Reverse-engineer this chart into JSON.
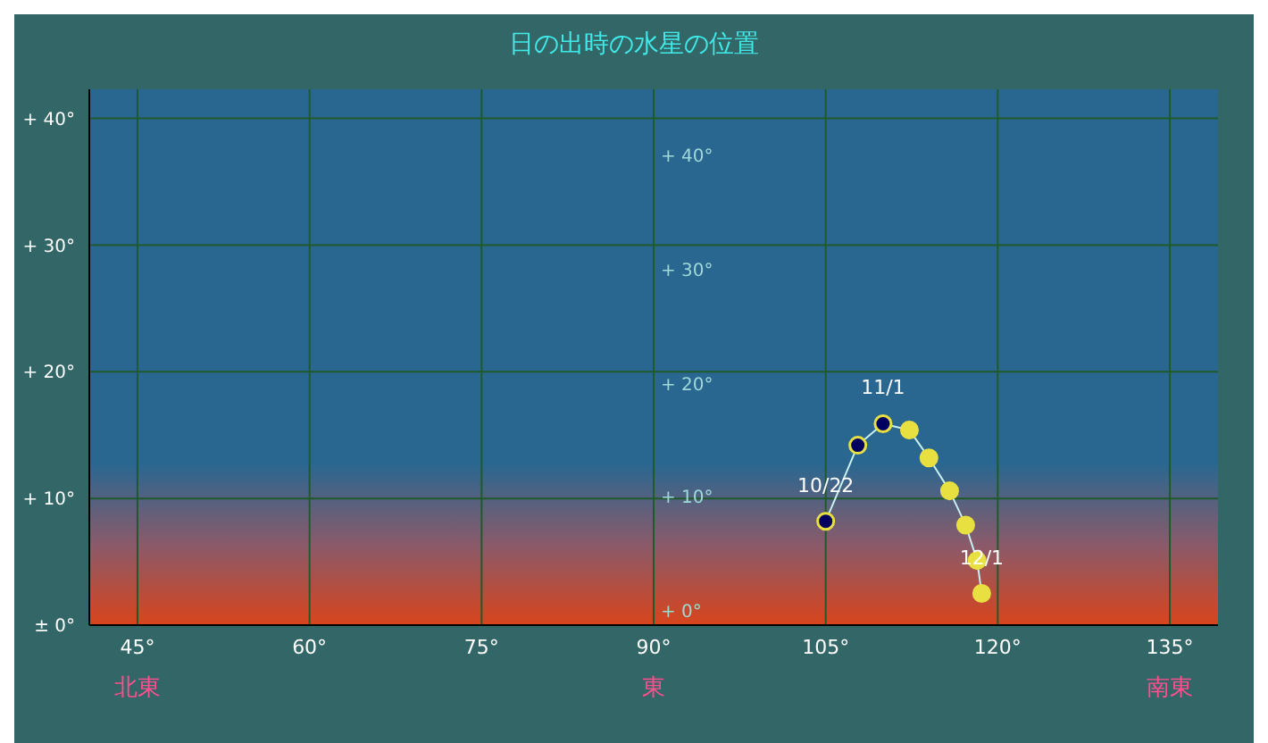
{
  "chart_data": {
    "type": "line",
    "title": "日の出時の水星の位置",
    "x": [
      105.0,
      107.8,
      110.0,
      112.3,
      114.0,
      115.8,
      117.2,
      118.2,
      118.6
    ],
    "series": [
      {
        "color": "#c8f0f0",
        "colors": [
          "#000060",
          "#000060",
          "#000060",
          "#e8e040",
          "#e8e040",
          "#e8e040",
          "#e8e040",
          "#e8e040",
          "#e8e040"
        ],
        "values": [
          8.2,
          14.2,
          15.9,
          15.4,
          13.2,
          10.6,
          7.9,
          5.1,
          2.5
        ],
        "value_labels": [
          "10/22",
          null,
          "11/1",
          null,
          null,
          null,
          null,
          null,
          "12/1"
        ]
      }
    ],
    "xlim": [
      40.8,
      139.2
    ],
    "xticks": [
      {
        "value": 45,
        "label": "45°"
      },
      {
        "value": 60,
        "label": "60°"
      },
      {
        "value": 75,
        "label": "75°"
      },
      {
        "value": 90,
        "label": "90°"
      },
      {
        "value": 105,
        "label": "105°"
      },
      {
        "value": 120,
        "label": "120°"
      },
      {
        "value": 135,
        "label": "135°"
      }
    ],
    "ylim": [
      0,
      42.3
    ],
    "yticks": [
      {
        "value": 0,
        "label": "± 0°"
      },
      {
        "value": 10,
        "label": "+ 10°"
      },
      {
        "value": 20,
        "label": "+ 20°"
      },
      {
        "value": 30,
        "label": "+ 30°"
      },
      {
        "value": 40,
        "label": "+ 40°"
      }
    ],
    "grid": true,
    "marker": "circle",
    "line_style": "solid",
    "legend": false,
    "annotations": [
      "北東",
      "東",
      "南東",
      "+ 40°",
      "+ 30°",
      "+ 20°",
      "+ 10°",
      "+ 0°"
    ]
  }
}
